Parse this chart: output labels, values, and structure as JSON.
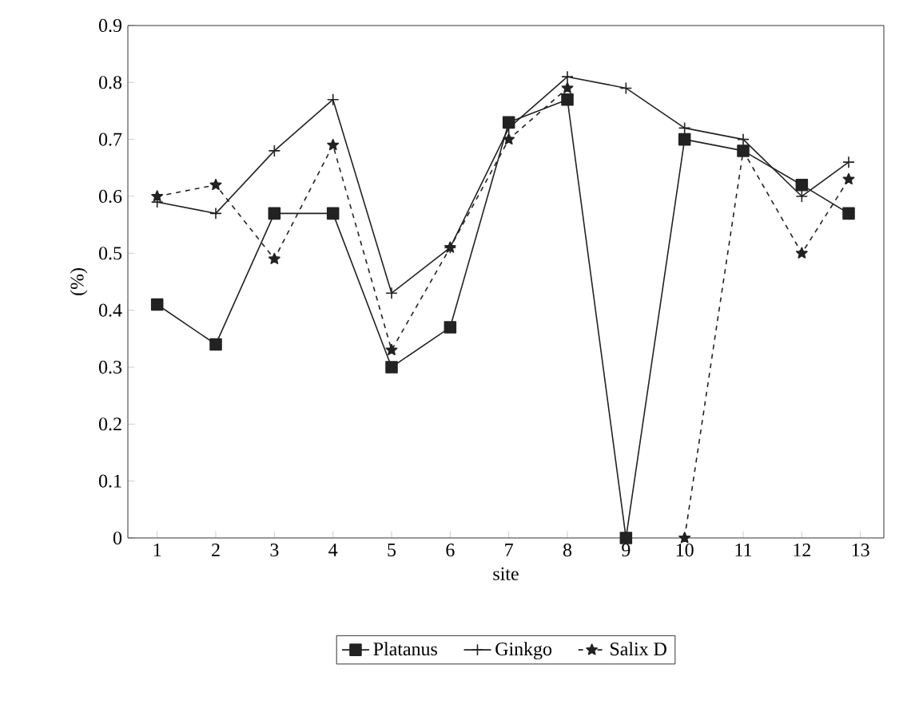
{
  "chart_data": {
    "type": "line",
    "xlabel": "site",
    "ylabel": "(%)",
    "x": [
      1,
      2,
      3,
      4,
      5,
      6,
      7,
      8,
      9,
      10,
      11,
      12,
      12.8
    ],
    "series": [
      {
        "name": "Platanus",
        "color": "#222222",
        "marker": "square",
        "line_style": "solid",
        "values": [
          0.41,
          0.34,
          0.57,
          0.57,
          0.3,
          0.37,
          0.73,
          0.77,
          0,
          0.7,
          0.68,
          0.62,
          0.57
        ]
      },
      {
        "name": "Ginkgo",
        "color": "#222222",
        "marker": "cross",
        "line_style": "solid",
        "values": [
          0.59,
          0.57,
          0.68,
          0.77,
          0.43,
          0.51,
          0.72,
          0.81,
          0.79,
          0.72,
          0.7,
          0.6,
          0.66
        ]
      },
      {
        "name": "Salix D",
        "color": "#222222",
        "marker": "star",
        "line_style": "dashed",
        "values": [
          0.6,
          0.62,
          0.49,
          0.69,
          0.33,
          0.51,
          0.7,
          0.79,
          null,
          0,
          0.68,
          0.5,
          0.63
        ]
      }
    ],
    "xlim": [
      0.5,
      13.4
    ],
    "xticks": [
      1,
      2,
      3,
      4,
      5,
      6,
      7,
      8,
      9,
      10,
      11,
      12,
      13
    ],
    "ylim": [
      0,
      0.9
    ],
    "yticks": [
      0,
      0.1,
      0.2,
      0.3,
      0.4,
      0.5,
      0.6,
      0.7,
      0.8,
      0.9
    ],
    "grid": false,
    "legend": "bottom"
  }
}
